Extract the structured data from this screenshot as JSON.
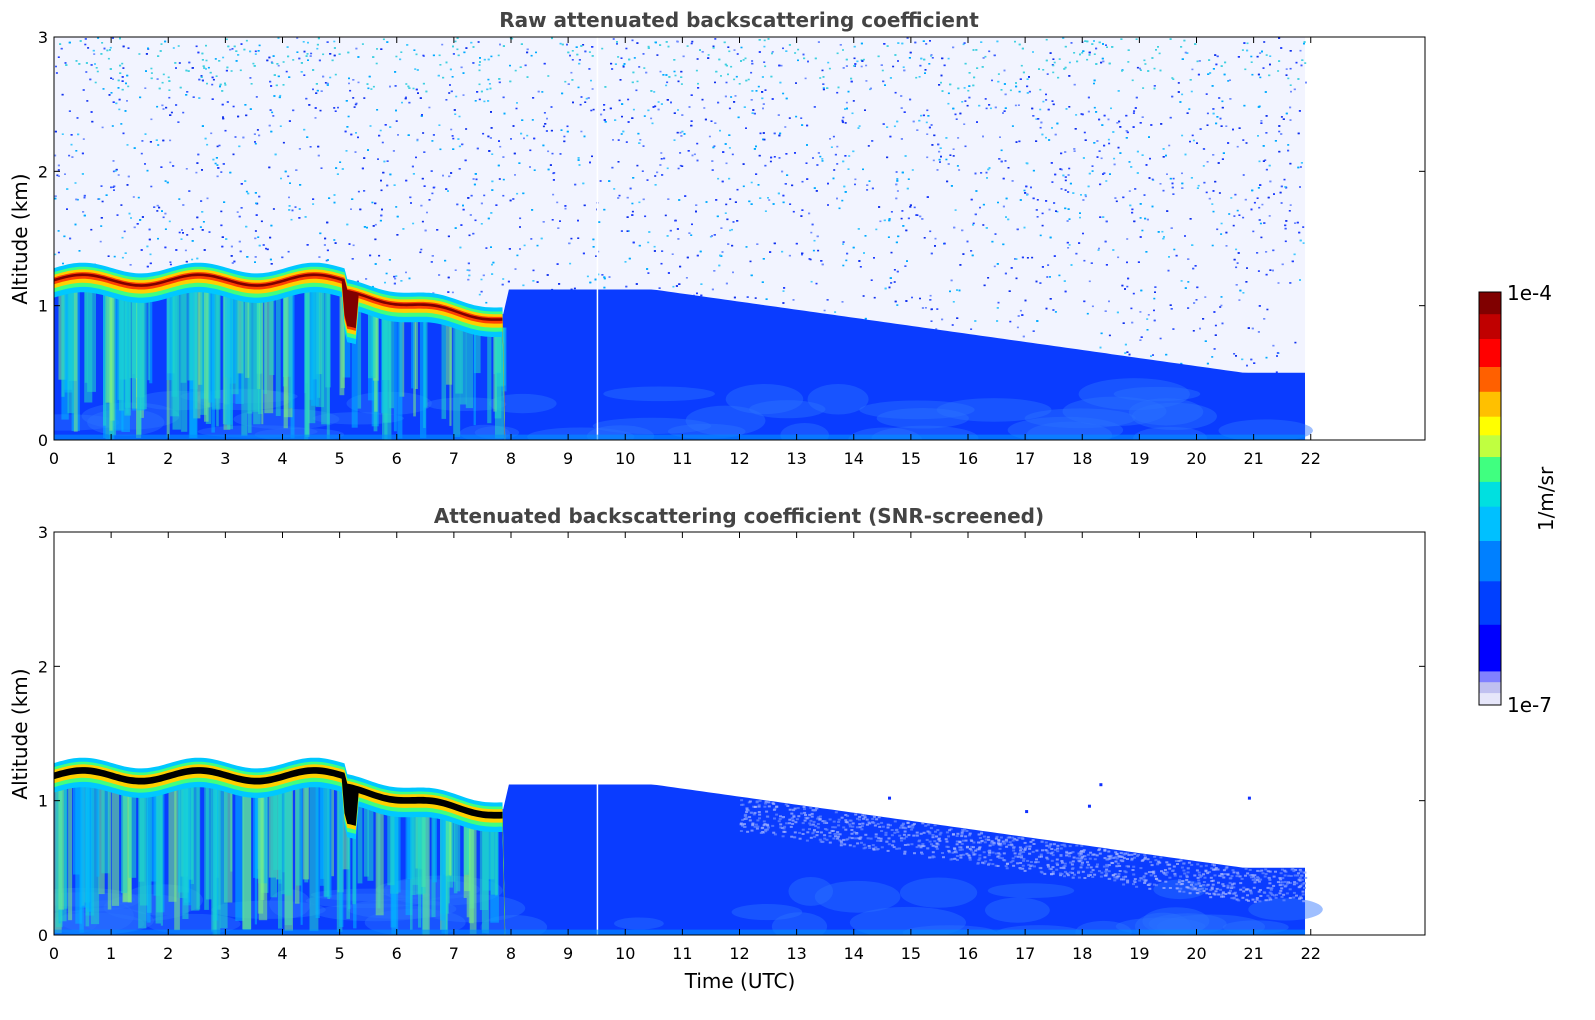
{
  "chart_data": [
    {
      "type": "heatmap",
      "title": "Raw attenuated backscattering coefficient",
      "xlabel": "",
      "ylabel": "Altitude (km)",
      "xlim": [
        0,
        24
      ],
      "ylim": [
        0,
        3
      ],
      "x_ticks": [
        "0",
        "1",
        "2",
        "3",
        "4",
        "5",
        "6",
        "7",
        "8",
        "9",
        "10",
        "11",
        "12",
        "13",
        "14",
        "15",
        "16",
        "17",
        "18",
        "19",
        "20",
        "21",
        "22"
      ],
      "y_ticks": [
        "0",
        "1",
        "2",
        "3"
      ],
      "data_end_hour": 21.9,
      "gap_hour": 9.5,
      "features": [
        {
          "hours": [
            0,
            5.1
          ],
          "cloud_top_km": 1.3,
          "cloud_base_km": 1.05
        },
        {
          "hours": [
            5.1,
            7.9
          ],
          "cloud_top_km": 1.18,
          "cloud_base_km": 0.92
        },
        {
          "hours": [
            7.9,
            21.9
          ],
          "boundary_layer_top_km": [
            1.1,
            0.5
          ]
        }
      ]
    },
    {
      "type": "heatmap",
      "title": "Attenuated backscattering coefficient (SNR-screened)",
      "xlabel": "Time (UTC)",
      "ylabel": "Altitude (km)",
      "xlim": [
        0,
        24
      ],
      "ylim": [
        0,
        3
      ],
      "x_ticks": [
        "0",
        "1",
        "2",
        "3",
        "4",
        "5",
        "6",
        "7",
        "8",
        "9",
        "10",
        "11",
        "12",
        "13",
        "14",
        "15",
        "16",
        "17",
        "18",
        "19",
        "20",
        "21",
        "22"
      ],
      "y_ticks": [
        "0",
        "1",
        "2",
        "3"
      ],
      "data_end_hour": 21.9,
      "gap_hour": 9.5
    }
  ],
  "colorbar": {
    "label": "1/m/sr",
    "max_label": "1e-4",
    "min_label": "1e-7",
    "colors": [
      "#e6e6fa",
      "#c0c0f0",
      "#8080ff",
      "#0000ff",
      "#0040ff",
      "#0080ff",
      "#00c0ff",
      "#00e0e0",
      "#40ff80",
      "#c0ff40",
      "#ffff00",
      "#ffc000",
      "#ff6000",
      "#ff0000",
      "#c00000",
      "#800000"
    ]
  }
}
